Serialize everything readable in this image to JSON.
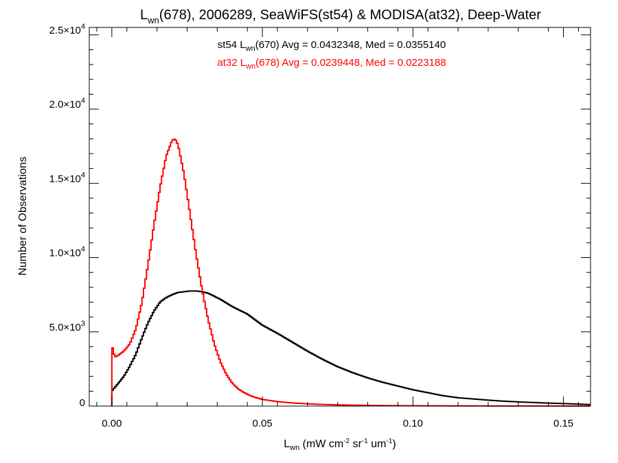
{
  "chart_data": {
    "type": "histogram",
    "title": {
      "prefix": "L",
      "sub": "wn",
      "rest": "(678), 2006289, SeaWiFS(st54) & MODISA(at32), Deep-Water"
    },
    "xlabel": {
      "prefix": "L",
      "sub": "wn",
      "rest": " (mW cm",
      "sup1": "-2",
      "mid": " sr",
      "sup2": "-1",
      "end": " um",
      "sup3": "-1",
      "close": ")"
    },
    "ylabel": "Number of Observations",
    "xlim": [
      -0.0075,
      0.159
    ],
    "ylim": [
      0,
      25500
    ],
    "x_ticks": [
      {
        "value": 0.0,
        "label": "0.00"
      },
      {
        "value": 0.05,
        "label": "0.05"
      },
      {
        "value": 0.1,
        "label": "0.10"
      },
      {
        "value": 0.15,
        "label": "0.15"
      }
    ],
    "y_ticks": [
      {
        "value": 0,
        "label": "0"
      },
      {
        "value": 5000,
        "mant": "5.0",
        "exp": "3"
      },
      {
        "value": 10000,
        "mant": "1.0",
        "exp": "4"
      },
      {
        "value": 15000,
        "mant": "1.5",
        "exp": "4"
      },
      {
        "value": 20000,
        "mant": "2.0",
        "exp": "4"
      },
      {
        "value": 25000,
        "mant": "2.5",
        "exp": "4"
      }
    ],
    "series": [
      {
        "name": {
          "prefix": "st54 L",
          "sub": "wn",
          "rest": "(670) Avg = 0.0432348, Med = 0.0355140"
        },
        "color": "#000000",
        "x": [
          0.0,
          0.002,
          0.004,
          0.006,
          0.008,
          0.01,
          0.012,
          0.014,
          0.016,
          0.018,
          0.02,
          0.022,
          0.024,
          0.026,
          0.028,
          0.03,
          0.032,
          0.034,
          0.036,
          0.038,
          0.04,
          0.042,
          0.045,
          0.048,
          0.05,
          0.055,
          0.06,
          0.065,
          0.07,
          0.075,
          0.08,
          0.085,
          0.09,
          0.095,
          0.1,
          0.105,
          0.11,
          0.115,
          0.12,
          0.125,
          0.13,
          0.135,
          0.14,
          0.145,
          0.15,
          0.155,
          0.159
        ],
        "y": [
          1000,
          1500,
          2000,
          2700,
          3500,
          4600,
          5600,
          6400,
          7000,
          7300,
          7500,
          7650,
          7700,
          7750,
          7750,
          7700,
          7600,
          7400,
          7200,
          6950,
          6700,
          6500,
          6200,
          5750,
          5450,
          4900,
          4300,
          3700,
          3150,
          2650,
          2250,
          1900,
          1600,
          1350,
          1100,
          900,
          700,
          560,
          480,
          400,
          330,
          280,
          240,
          200,
          170,
          130,
          100
        ]
      },
      {
        "name": {
          "prefix": "at32 L",
          "sub": "wn",
          "rest": "(678) Avg = 0.0239448, Med = 0.0223188"
        },
        "color": "#ff0000",
        "x": [
          0.0,
          0.0003,
          0.0006,
          0.001,
          0.002,
          0.004,
          0.006,
          0.008,
          0.01,
          0.012,
          0.014,
          0.016,
          0.018,
          0.02,
          0.021,
          0.022,
          0.024,
          0.026,
          0.028,
          0.03,
          0.032,
          0.034,
          0.036,
          0.038,
          0.04,
          0.042,
          0.044,
          0.046,
          0.048,
          0.05,
          0.055,
          0.06,
          0.065,
          0.07,
          0.075,
          0.08,
          0.085,
          0.09,
          0.095,
          0.1,
          0.11,
          0.12,
          0.13,
          0.14,
          0.15,
          0.159
        ],
        "y": [
          1500,
          4400,
          3600,
          3300,
          3400,
          3700,
          4200,
          5200,
          7000,
          9500,
          12200,
          14700,
          16800,
          17900,
          18000,
          17600,
          15600,
          12900,
          10200,
          7800,
          5800,
          4200,
          3000,
          2150,
          1550,
          1150,
          900,
          700,
          560,
          450,
          300,
          210,
          150,
          110,
          80,
          60,
          45,
          35,
          28,
          22,
          15,
          10,
          7,
          5,
          3,
          2
        ]
      }
    ]
  }
}
